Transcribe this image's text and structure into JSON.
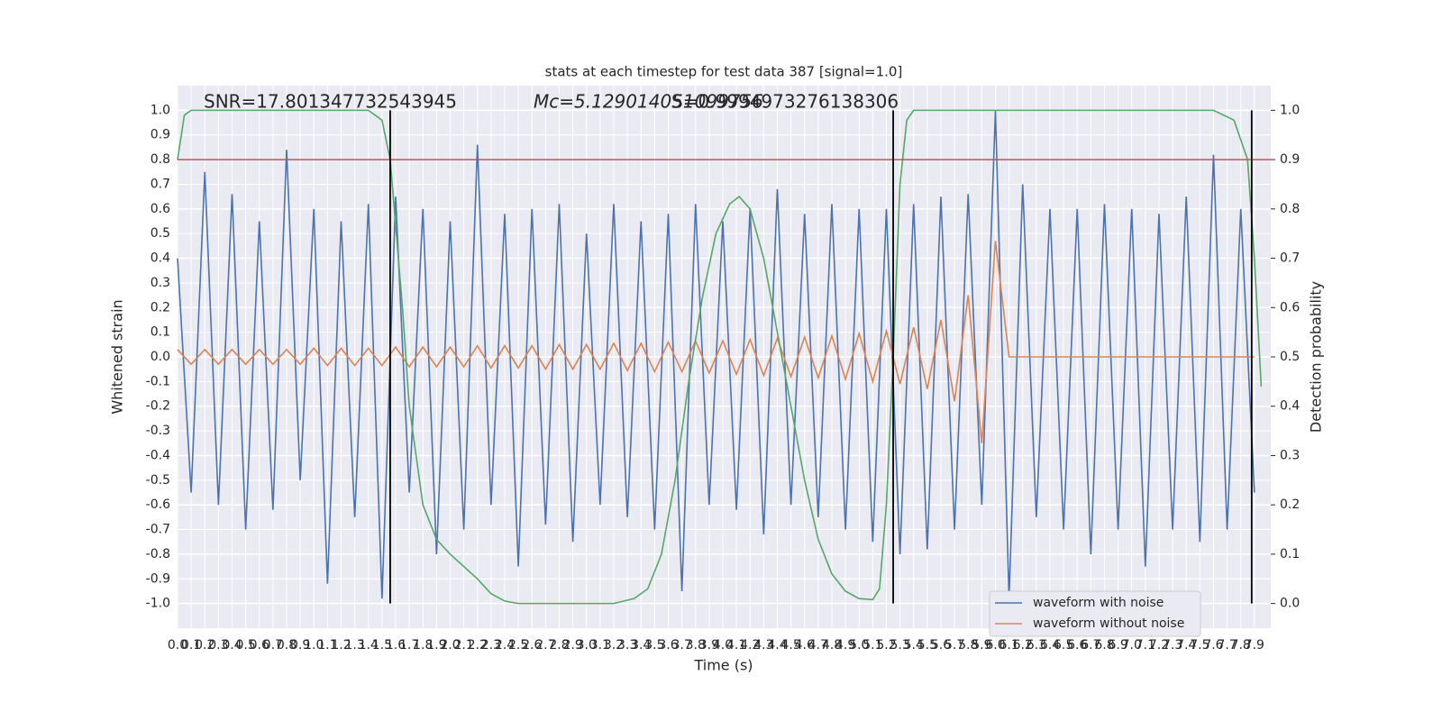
{
  "chart_data": {
    "type": "line",
    "title": "stats at each timestep for test data 387 [signal=1.0]",
    "xlabel": "Time (s)",
    "ylabel": "Whitened strain",
    "y2label": "Detection probability",
    "annotations": [
      "SNR=17.801347732543945",
      "Mc=5.129014051099756",
      "S=0.9994973276138306"
    ],
    "xlim": [
      0,
      8.02
    ],
    "ylim": [
      -1.1,
      1.1
    ],
    "y2lim": [
      -0.05,
      1.05
    ],
    "grid": true,
    "legend": "lower right",
    "threshold": 0.8,
    "threshold_color": "#c44e52",
    "vlines": [
      1.56,
      5.25,
      7.88
    ],
    "vline_color": "#000000",
    "xticks": [
      {
        "value": 0,
        "label": "0.0"
      },
      0.1,
      0.2,
      0.3,
      0.4,
      0.5,
      0.6,
      0.7,
      0.8,
      0.9,
      {
        "value": 1,
        "label": "1.0"
      },
      1.1,
      1.2,
      1.3,
      1.4,
      1.5,
      1.6,
      1.7,
      1.8,
      1.9,
      {
        "value": 2,
        "label": "2.0"
      },
      2.1,
      2.2,
      2.3,
      2.4,
      2.5,
      2.6,
      2.7,
      2.8,
      2.9,
      {
        "value": 3,
        "label": "3.0"
      },
      3.1,
      3.2,
      3.3,
      3.4,
      3.5,
      3.6,
      3.7,
      3.8,
      3.9,
      {
        "value": 4,
        "label": "4.0"
      },
      4.1,
      4.2,
      4.3,
      4.4,
      4.5,
      4.6,
      4.7,
      4.8,
      4.9,
      {
        "value": 5,
        "label": "5.0"
      },
      5.1,
      5.2,
      5.3,
      5.4,
      5.5,
      5.6,
      5.7,
      5.8,
      5.9,
      {
        "value": 6,
        "label": "6.0"
      },
      6.1,
      6.2,
      6.3,
      6.4,
      6.5,
      6.6,
      6.7,
      6.8,
      6.9,
      {
        "value": 7,
        "label": "7.0"
      },
      7.1,
      7.2,
      7.3,
      7.4,
      7.5,
      7.6,
      7.7,
      7.8,
      7.9
    ],
    "yticks": [
      {
        "value": -1,
        "label": "-1.0"
      },
      -0.9,
      -0.8,
      -0.7,
      -0.6,
      -0.5,
      -0.4,
      -0.3,
      -0.2,
      -0.1,
      {
        "value": 0,
        "label": "0.0"
      },
      0.1,
      0.2,
      0.3,
      0.4,
      0.5,
      0.6,
      0.7,
      0.8,
      0.9,
      {
        "value": 1,
        "label": "1.0"
      }
    ],
    "y2ticks": [
      {
        "value": 0,
        "label": "0.0"
      },
      0.1,
      0.2,
      0.3,
      0.4,
      0.5,
      0.6,
      0.7,
      0.8,
      0.9,
      {
        "value": 1,
        "label": "1.0"
      }
    ],
    "x": [
      0,
      0.1,
      0.2,
      0.3,
      0.4,
      0.5,
      0.6,
      0.7,
      0.8,
      0.9,
      1,
      1.1,
      1.2,
      1.3,
      1.4,
      1.5,
      1.6,
      1.7,
      1.8,
      1.9,
      2,
      2.1,
      2.2,
      2.3,
      2.4,
      2.5,
      2.6,
      2.7,
      2.8,
      2.9,
      3,
      3.1,
      3.2,
      3.3,
      3.4,
      3.5,
      3.6,
      3.7,
      3.8,
      3.9,
      4,
      4.1,
      4.2,
      4.3,
      4.4,
      4.5,
      4.6,
      4.7,
      4.8,
      4.9,
      5,
      5.1,
      5.2,
      5.3,
      5.4,
      5.5,
      5.6,
      5.7,
      5.8,
      5.9,
      6,
      6.1,
      6.2,
      6.3,
      6.4,
      6.5,
      6.6,
      6.7,
      6.8,
      6.9,
      7,
      7.1,
      7.2,
      7.3,
      7.4,
      7.5,
      7.6,
      7.7,
      7.8,
      7.9
    ],
    "series": [
      {
        "name": "waveform with noise",
        "color": "#4c72b0",
        "values": [
          0.4,
          -0.55,
          0.75,
          -0.6,
          0.66,
          -0.7,
          0.55,
          -0.62,
          0.84,
          -0.5,
          0.6,
          -0.92,
          0.55,
          -0.65,
          0.62,
          -0.98,
          0.65,
          -0.55,
          0.6,
          -0.8,
          0.55,
          -0.7,
          0.86,
          -0.6,
          0.58,
          -0.85,
          0.6,
          -0.68,
          0.62,
          -0.75,
          0.5,
          -0.6,
          0.62,
          -0.65,
          0.55,
          -0.7,
          0.58,
          -0.95,
          0.62,
          -0.6,
          0.55,
          -0.62,
          0.6,
          -0.72,
          0.68,
          -0.6,
          0.58,
          -0.65,
          0.62,
          -0.7,
          0.6,
          -0.75,
          0.6,
          -0.8,
          0.62,
          -0.78,
          0.65,
          -0.7,
          0.66,
          -0.6,
          1.0,
          -0.98,
          0.7,
          -0.65,
          0.6,
          -0.7,
          0.6,
          -0.8,
          0.62,
          -0.7,
          0.6,
          -0.85,
          0.58,
          -0.7,
          0.65,
          -0.75,
          0.82,
          -0.7,
          0.6,
          -0.55
        ]
      },
      {
        "name": "waveform without noise",
        "color": "#dd8452",
        "values": [
          0.03,
          -0.03,
          0.03,
          -0.03,
          0.03,
          -0.03,
          0.03,
          -0.03,
          0.03,
          -0.03,
          0.035,
          -0.035,
          0.035,
          -0.035,
          0.035,
          -0.035,
          0.04,
          -0.04,
          0.04,
          -0.04,
          0.04,
          -0.04,
          0.045,
          -0.045,
          0.045,
          -0.045,
          0.045,
          -0.05,
          0.05,
          -0.05,
          0.05,
          -0.05,
          0.055,
          -0.055,
          0.055,
          -0.06,
          0.06,
          -0.06,
          0.065,
          -0.065,
          0.065,
          -0.07,
          0.07,
          -0.075,
          0.075,
          -0.08,
          0.08,
          -0.085,
          0.085,
          -0.09,
          0.095,
          -0.1,
          0.105,
          -0.11,
          0.12,
          -0.13,
          0.15,
          -0.18,
          0.25,
          -0.35,
          0.47,
          0,
          0,
          0,
          0,
          0,
          0,
          0,
          0,
          0,
          0,
          0,
          0,
          0,
          0,
          0,
          0,
          0,
          0,
          0
        ]
      },
      {
        "color": "#55a868",
        "axis": "y2",
        "x": [
          0,
          0.05,
          0.1,
          1.4,
          1.5,
          1.56,
          1.65,
          1.7,
          1.8,
          1.9,
          2.0,
          2.2,
          2.3,
          2.4,
          2.5,
          3.2,
          3.35,
          3.45,
          3.55,
          3.65,
          3.75,
          3.85,
          3.95,
          4.05,
          4.12,
          4.2,
          4.3,
          4.4,
          4.5,
          4.6,
          4.7,
          4.8,
          4.9,
          5.0,
          5.1,
          5.15,
          5.2,
          5.25,
          5.3,
          5.35,
          5.4,
          7.6,
          7.75,
          7.85,
          7.9,
          7.95
        ],
        "values": [
          0.9,
          0.99,
          1.0,
          1.0,
          0.98,
          0.9,
          0.6,
          0.4,
          0.2,
          0.13,
          0.1,
          0.05,
          0.02,
          0.005,
          0,
          0,
          0.01,
          0.03,
          0.1,
          0.25,
          0.45,
          0.62,
          0.75,
          0.81,
          0.825,
          0.8,
          0.7,
          0.55,
          0.4,
          0.25,
          0.13,
          0.06,
          0.025,
          0.01,
          0.008,
          0.03,
          0.2,
          0.5,
          0.85,
          0.98,
          1.0,
          1.0,
          0.98,
          0.9,
          0.7,
          0.44
        ]
      }
    ]
  }
}
